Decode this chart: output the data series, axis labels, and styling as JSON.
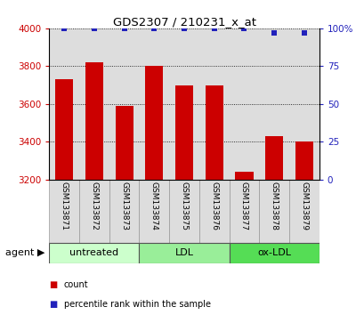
{
  "title": "GDS2307 / 210231_x_at",
  "samples": [
    "GSM133871",
    "GSM133872",
    "GSM133873",
    "GSM133874",
    "GSM133875",
    "GSM133876",
    "GSM133877",
    "GSM133878",
    "GSM133879"
  ],
  "counts": [
    3730,
    3820,
    3590,
    3800,
    3700,
    3700,
    3240,
    3430,
    3400
  ],
  "percentile_rank": [
    100,
    100,
    100,
    100,
    100,
    100,
    100,
    97,
    97
  ],
  "bar_color": "#cc0000",
  "dot_color": "#2222bb",
  "ylim_left": [
    3200,
    4000
  ],
  "ylim_right": [
    0,
    100
  ],
  "yticks_left": [
    3200,
    3400,
    3600,
    3800,
    4000
  ],
  "yticks_right": [
    0,
    25,
    50,
    75,
    100
  ],
  "ytick_labels_right": [
    "0",
    "25",
    "50",
    "75",
    "100%"
  ],
  "groups": [
    {
      "label": "untreated",
      "indices": [
        0,
        1,
        2
      ],
      "color": "#ccffcc"
    },
    {
      "label": "LDL",
      "indices": [
        3,
        4,
        5
      ],
      "color": "#99ee99"
    },
    {
      "label": "ox-LDL",
      "indices": [
        6,
        7,
        8
      ],
      "color": "#55dd55"
    }
  ],
  "agent_label": "agent",
  "legend_count_label": "count",
  "legend_pct_label": "percentile rank within the sample",
  "background_color": "#ffffff",
  "plot_bg_color": "#dddddd",
  "bar_width": 0.6
}
